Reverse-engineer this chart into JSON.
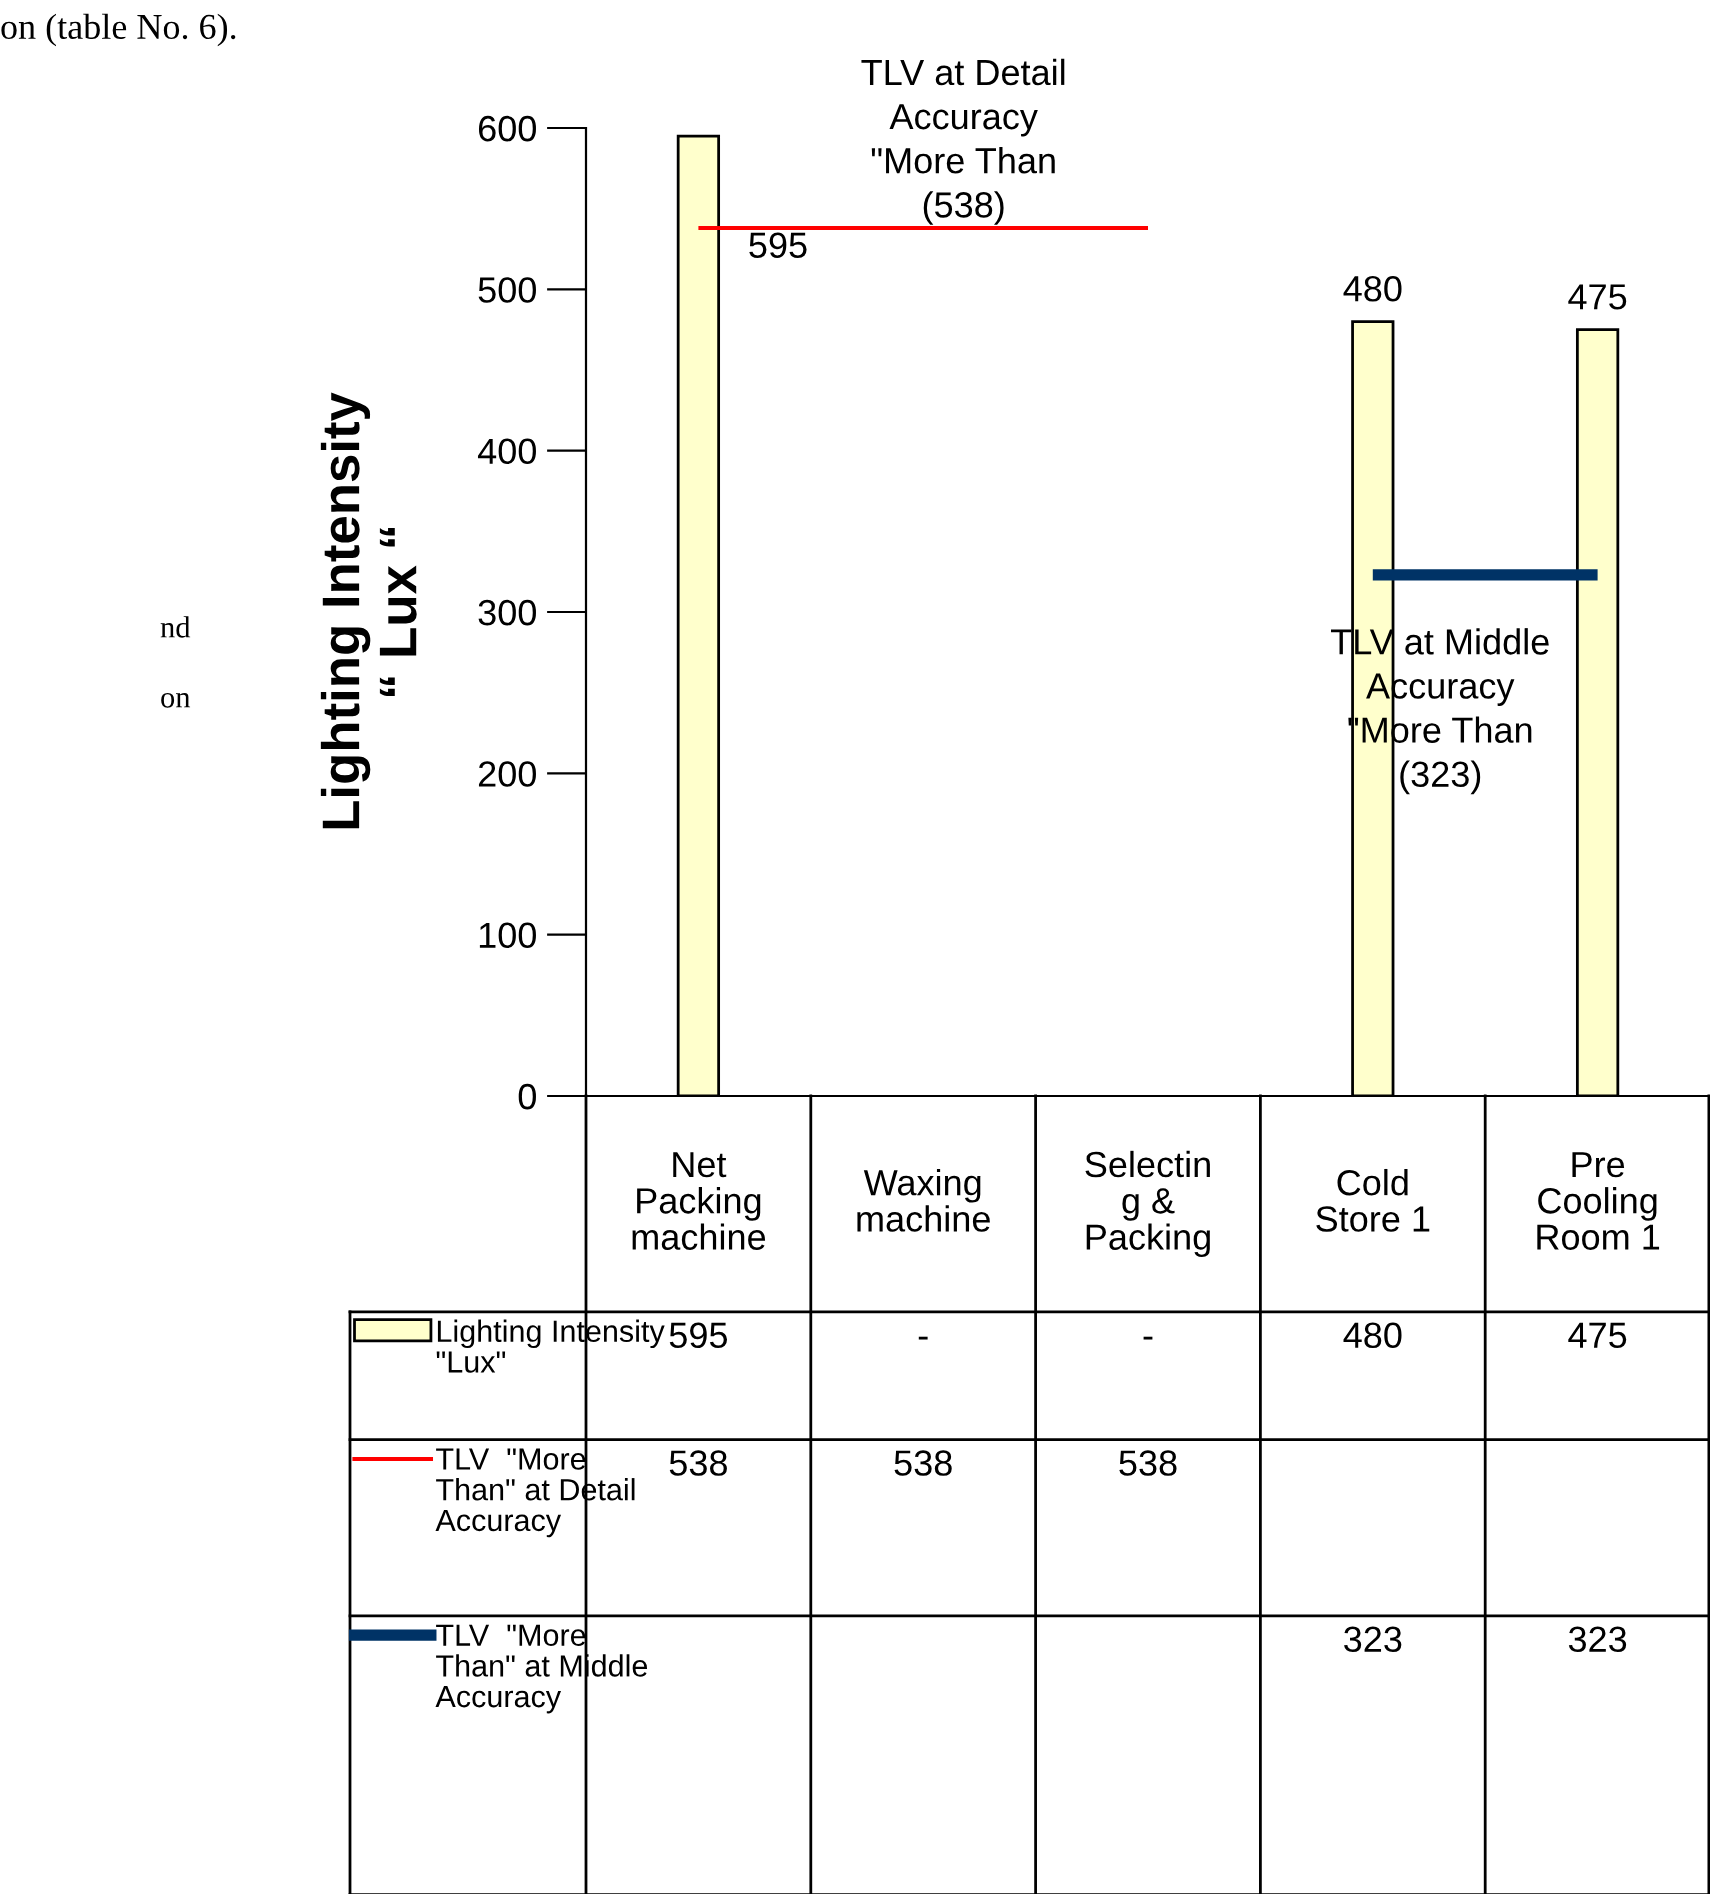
{
  "chart_data": {
    "type": "bar",
    "categories": [
      "Net\nPacking\nmachine",
      "Waxing\nmachine",
      "Selectin\ng &\nPacking",
      "Cold\nStore 1",
      "Pre\nCooling\nRoom 1"
    ],
    "legend": "bottom left",
    "ylabel": "Lighting Intensity\n“ Lux “",
    "ylim": [
      0,
      600
    ],
    "yticks": [
      0,
      100,
      200,
      300,
      400,
      500,
      600
    ],
    "grid": false,
    "data_labels": true,
    "series": [
      {
        "name": "Lighting Intensity\n\"Lux\"",
        "color": "#ffffcc",
        "values": [
          595,
          null,
          null,
          480,
          475
        ],
        "value_labels": [
          "595",
          "-",
          "-",
          "480",
          "475"
        ]
      },
      {
        "name": "TLV  \"More\nThan\" at Detail\nAccuracy",
        "type": "line",
        "color": "#ff0000",
        "values": [
          538,
          538,
          538,
          null,
          null
        ],
        "value_labels": [
          "538",
          "538",
          "538",
          null,
          null
        ]
      },
      {
        "name": "TLV  \"More\nThan\" at Middle\nAccuracy",
        "type": "line",
        "color": "#003366",
        "values": [
          null,
          null,
          null,
          323,
          323
        ],
        "value_labels": [
          null,
          null,
          null,
          "323",
          "323"
        ]
      }
    ],
    "annotations": [
      "TLV at Detail\nAccuracy\n\"More Than\n(538)",
      "TLV at Middle\nAccuracy\n\"More Than\n(323)",
      "on (table No. 6).",
      "nd",
      "on"
    ]
  }
}
